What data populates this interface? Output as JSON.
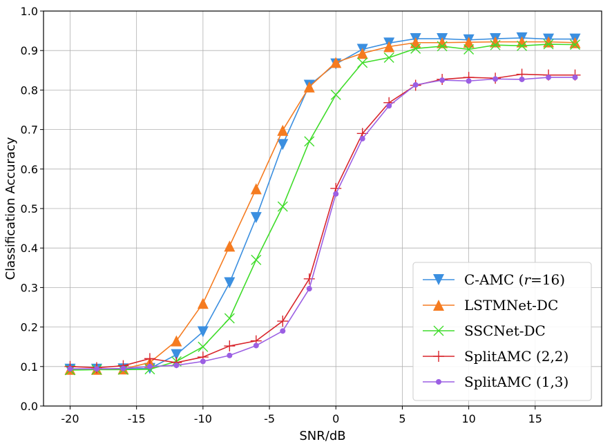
{
  "chart_data": {
    "type": "line",
    "title": "",
    "xlabel": "SNR/dB",
    "ylabel": "Classification Accuracy",
    "xlim": [
      -22,
      20
    ],
    "ylim": [
      0.0,
      1.0
    ],
    "grid": true,
    "legend_position": "bottom-right",
    "x": [
      -20,
      -18,
      -16,
      -14,
      -12,
      -10,
      -8,
      -6,
      -4,
      -2,
      0,
      2,
      4,
      6,
      8,
      10,
      12,
      14,
      16,
      18
    ],
    "x_ticks": [
      -20,
      -15,
      -10,
      -5,
      0,
      5,
      10,
      15
    ],
    "x_tick_labels": [
      "-20",
      "-15",
      "-10",
      "-5",
      "0",
      "5",
      "10",
      "15"
    ],
    "y_ticks": [
      0.0,
      0.1,
      0.2,
      0.3,
      0.4,
      0.5,
      0.6,
      0.7,
      0.8,
      0.9,
      1.0
    ],
    "y_tick_labels": [
      "0.0",
      "0.1",
      "0.2",
      "0.3",
      "0.4",
      "0.5",
      "0.6",
      "0.7",
      "0.8",
      "0.9",
      "1.0"
    ],
    "series": [
      {
        "name": "C-AMC (r=16)",
        "legend_parts": [
          "C-AMC (",
          "r",
          "=16)"
        ],
        "color": "#3b8fe0",
        "marker": "triangle-down",
        "values": [
          0.093,
          0.093,
          0.094,
          0.095,
          0.13,
          0.188,
          0.312,
          0.477,
          0.662,
          0.812,
          0.866,
          0.903,
          0.919,
          0.93,
          0.93,
          0.927,
          0.93,
          0.932,
          0.929,
          0.929
        ]
      },
      {
        "name": "LSTMNet-DC",
        "legend_parts": [
          "LSTMNet-DC"
        ],
        "color": "#f57b20",
        "marker": "triangle-up",
        "values": [
          0.093,
          0.093,
          0.094,
          0.11,
          0.165,
          0.26,
          0.405,
          0.55,
          0.698,
          0.808,
          0.87,
          0.893,
          0.91,
          0.92,
          0.92,
          0.921,
          0.922,
          0.922,
          0.922,
          0.92
        ]
      },
      {
        "name": "SSCNet-DC",
        "legend_parts": [
          "SSCNet-DC"
        ],
        "color": "#3fdc2a",
        "marker": "x",
        "values": [
          0.091,
          0.092,
          0.092,
          0.093,
          0.113,
          0.15,
          0.222,
          0.37,
          0.505,
          0.67,
          0.788,
          0.869,
          0.882,
          0.905,
          0.911,
          0.903,
          0.914,
          0.912,
          0.916,
          0.915
        ]
      },
      {
        "name": "SplitAMC (2,2)",
        "legend_parts": [
          "SplitAMC (2,2)"
        ],
        "color": "#d8252c",
        "marker": "plus",
        "values": [
          0.1,
          0.097,
          0.102,
          0.12,
          0.11,
          0.124,
          0.152,
          0.165,
          0.215,
          0.322,
          0.551,
          0.69,
          0.768,
          0.812,
          0.827,
          0.832,
          0.83,
          0.84,
          0.838,
          0.838
        ]
      },
      {
        "name": "SplitAMC (1,3)",
        "legend_parts": [
          "SplitAMC (1,3)"
        ],
        "color": "#9b5fe3",
        "marker": "circle",
        "values": [
          0.094,
          0.094,
          0.095,
          0.1,
          0.103,
          0.113,
          0.128,
          0.153,
          0.19,
          0.297,
          0.537,
          0.677,
          0.76,
          0.813,
          0.825,
          0.823,
          0.828,
          0.827,
          0.832,
          0.832
        ]
      }
    ]
  }
}
